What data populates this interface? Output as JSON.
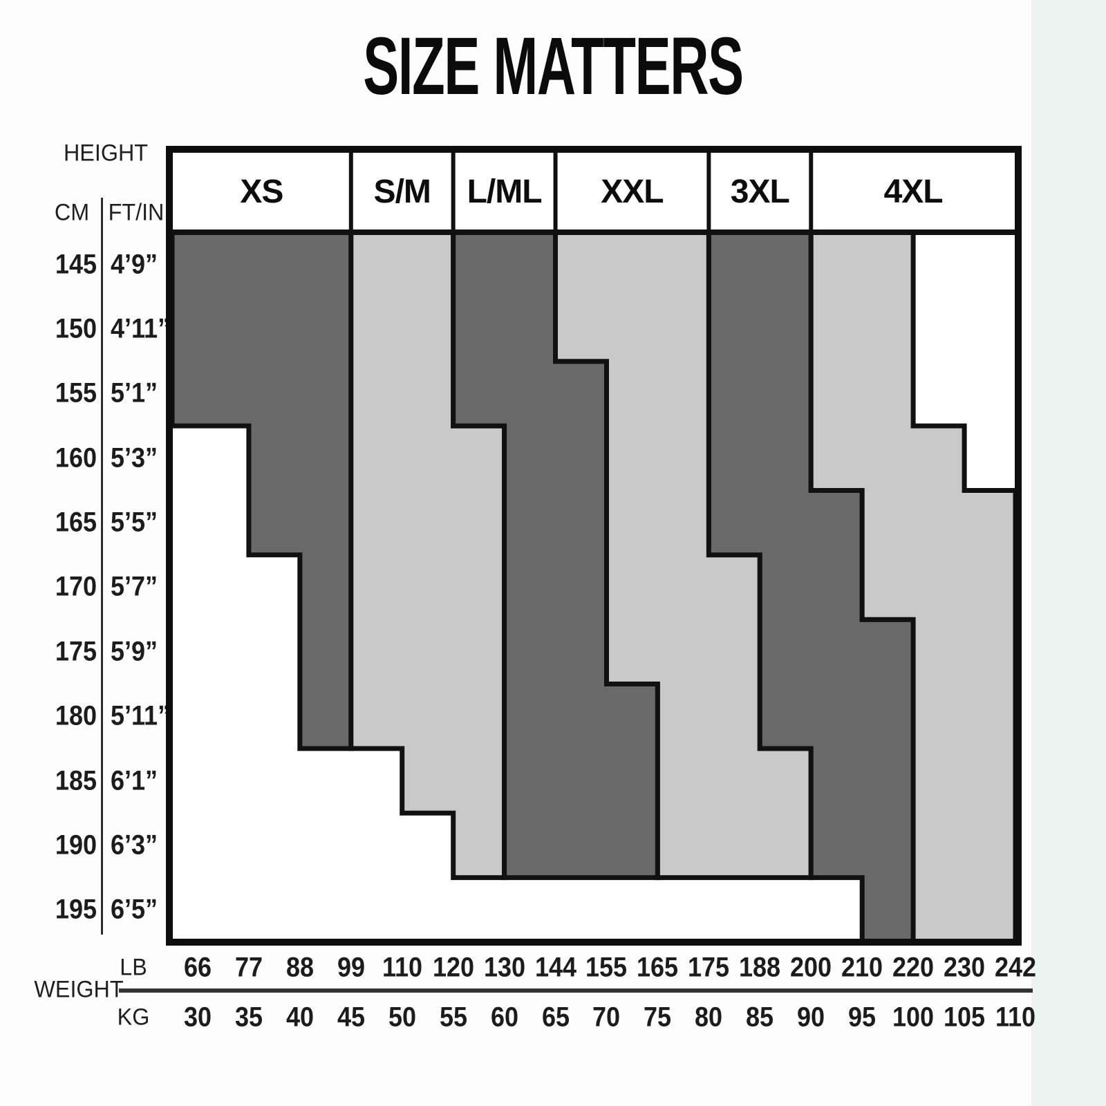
{
  "title": "SIZE MATTERS",
  "height_axis": {
    "label": "HEIGHT",
    "cm": "CM",
    "ftin": "FT/IN"
  },
  "weight_axis": {
    "label": "WEIGHT",
    "lb": "LB",
    "kg": "KG"
  },
  "colors": {
    "dark_band": "#696969",
    "light_band": "#c9c9c9",
    "line": "#111111",
    "cell_bg": "#ffffff",
    "page_bg": "#fdfdfd",
    "side_strip": "#edf3f0"
  },
  "chart_data": {
    "type": "step-region-size-chart",
    "sizes": [
      "XS",
      "S/M",
      "L/ML",
      "XXL",
      "3XL",
      "4XL"
    ],
    "x_ticks_lb": [
      66,
      77,
      88,
      99,
      110,
      120,
      130,
      144,
      155,
      165,
      175,
      188,
      200,
      210,
      220,
      230,
      242
    ],
    "x_ticks_kg": [
      30,
      35,
      40,
      45,
      50,
      55,
      60,
      65,
      70,
      75,
      80,
      85,
      90,
      95,
      100,
      105,
      110
    ],
    "height_rows_cm": [
      145,
      150,
      155,
      160,
      165,
      170,
      175,
      180,
      185,
      190,
      195
    ],
    "height_rows_ftin": [
      "4’9”",
      "4’11”",
      "5’1”",
      "5’3”",
      "5’5”",
      "5’7”",
      "5’9”",
      "5’11”",
      "6’1”",
      "6’3”",
      "6’5”"
    ],
    "header_cells": [
      {
        "label": "XS",
        "from": "min",
        "to": 99
      },
      {
        "label": "S/M",
        "from": 99,
        "to": 120
      },
      {
        "label": "L/ML",
        "from": 120,
        "to": 144
      },
      {
        "label": "XXL",
        "from": 144,
        "to": 175
      },
      {
        "label": "3XL",
        "from": 175,
        "to": 200
      },
      {
        "label": "4XL",
        "from": 200,
        "to": "max"
      }
    ],
    "bands": [
      {
        "size": "XS",
        "shade": "dark",
        "rows": [
          [
            145,
            "min",
            99
          ],
          [
            150,
            "min",
            99
          ],
          [
            155,
            "min",
            99
          ],
          [
            160,
            77,
            99
          ],
          [
            165,
            77,
            99
          ],
          [
            170,
            88,
            99
          ],
          [
            175,
            88,
            99
          ],
          [
            180,
            88,
            99
          ]
        ]
      },
      {
        "size": "S/M",
        "shade": "light",
        "rows": [
          [
            145,
            99,
            120
          ],
          [
            150,
            99,
            120
          ],
          [
            155,
            99,
            120
          ],
          [
            160,
            99,
            130
          ],
          [
            165,
            99,
            130
          ],
          [
            170,
            99,
            130
          ],
          [
            175,
            99,
            130
          ],
          [
            180,
            99,
            130
          ],
          [
            185,
            110,
            130
          ],
          [
            190,
            120,
            130
          ]
        ]
      },
      {
        "size": "L/ML",
        "shade": "dark",
        "rows": [
          [
            145,
            120,
            144
          ],
          [
            150,
            120,
            144
          ],
          [
            155,
            120,
            155
          ],
          [
            160,
            130,
            155
          ],
          [
            165,
            130,
            155
          ],
          [
            170,
            130,
            155
          ],
          [
            175,
            130,
            155
          ],
          [
            180,
            130,
            165
          ],
          [
            185,
            130,
            165
          ],
          [
            190,
            130,
            165
          ]
        ]
      },
      {
        "size": "XXL",
        "shade": "light",
        "rows": [
          [
            145,
            144,
            175
          ],
          [
            150,
            144,
            175
          ],
          [
            155,
            155,
            175
          ],
          [
            160,
            155,
            175
          ],
          [
            165,
            155,
            175
          ],
          [
            170,
            155,
            188
          ],
          [
            175,
            155,
            188
          ],
          [
            180,
            165,
            188
          ],
          [
            185,
            165,
            200
          ],
          [
            190,
            165,
            200
          ]
        ]
      },
      {
        "size": "3XL",
        "shade": "dark",
        "rows": [
          [
            145,
            175,
            200
          ],
          [
            150,
            175,
            200
          ],
          [
            155,
            175,
            200
          ],
          [
            160,
            175,
            200
          ],
          [
            165,
            175,
            210
          ],
          [
            170,
            188,
            210
          ],
          [
            175,
            188,
            220
          ],
          [
            180,
            188,
            220
          ],
          [
            185,
            200,
            220
          ],
          [
            190,
            200,
            220
          ],
          [
            195,
            210,
            220
          ]
        ]
      },
      {
        "size": "4XL",
        "shade": "light",
        "rows": [
          [
            145,
            200,
            220
          ],
          [
            150,
            200,
            220
          ],
          [
            155,
            200,
            220
          ],
          [
            160,
            200,
            230
          ],
          [
            165,
            210,
            242
          ],
          [
            170,
            210,
            242
          ],
          [
            175,
            220,
            242
          ],
          [
            180,
            220,
            242
          ],
          [
            185,
            220,
            242
          ],
          [
            190,
            220,
            242
          ],
          [
            195,
            220,
            242
          ]
        ]
      }
    ],
    "layout": {
      "grid": "off",
      "legend": "none",
      "x_axis_side": "bottom",
      "y_axis_side": "left",
      "x_range_lb": [
        66,
        242
      ],
      "y_range_cm": [
        145,
        195
      ]
    }
  }
}
